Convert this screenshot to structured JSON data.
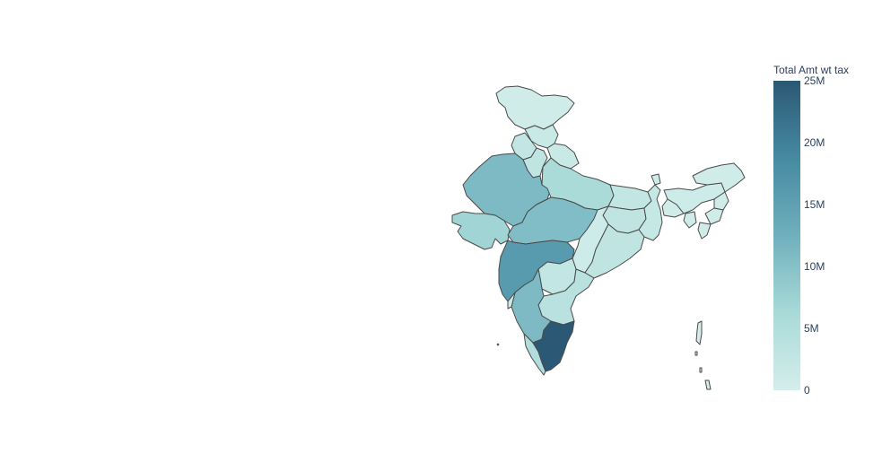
{
  "colorbar": {
    "title": "Total Amt wt tax",
    "ticks": [
      "25M",
      "20M",
      "15M",
      "10M",
      "5M",
      "0"
    ],
    "range": [
      0,
      25000000
    ],
    "colorscale": [
      "#d4eeeb",
      "#a8dad8",
      "#6fb0bd",
      "#468aa2",
      "#2b5874"
    ]
  },
  "map_data": {
    "type": "choropleth",
    "region": "India",
    "states": [
      {
        "name": "Jammu & Kashmir",
        "value": 500000
      },
      {
        "name": "Himachal Pradesh",
        "value": 1500000
      },
      {
        "name": "Punjab",
        "value": 2500000
      },
      {
        "name": "Uttarakhand",
        "value": 1500000
      },
      {
        "name": "Haryana",
        "value": 3000000
      },
      {
        "name": "Rajasthan",
        "value": 11000000
      },
      {
        "name": "Uttar Pradesh",
        "value": 6000000
      },
      {
        "name": "Gujarat",
        "value": 7000000
      },
      {
        "name": "Madhya Pradesh",
        "value": 10500000
      },
      {
        "name": "Bihar",
        "value": 2500000
      },
      {
        "name": "Jharkhand",
        "value": 3000000
      },
      {
        "name": "West Bengal",
        "value": 2000000
      },
      {
        "name": "Chhattisgarh",
        "value": 1000000
      },
      {
        "name": "Odisha",
        "value": 3000000
      },
      {
        "name": "Maharashtra",
        "value": 16000000
      },
      {
        "name": "Telangana",
        "value": 2500000
      },
      {
        "name": "Andhra Pradesh",
        "value": 4000000
      },
      {
        "name": "Karnataka",
        "value": 11000000
      },
      {
        "name": "Goa",
        "value": 1000000
      },
      {
        "name": "Kerala",
        "value": 5000000
      },
      {
        "name": "Tamil Nadu",
        "value": 25000000
      },
      {
        "name": "Sikkim",
        "value": 500000
      },
      {
        "name": "Assam",
        "value": 1000000
      },
      {
        "name": "Arunachal Pradesh",
        "value": 500000
      },
      {
        "name": "Meghalaya",
        "value": 500000
      },
      {
        "name": "Nagaland",
        "value": 500000
      },
      {
        "name": "Manipur",
        "value": 500000
      },
      {
        "name": "Mizoram",
        "value": 500000
      },
      {
        "name": "Tripura",
        "value": 500000
      },
      {
        "name": "Andaman & Nicobar",
        "value": 200000
      }
    ]
  }
}
